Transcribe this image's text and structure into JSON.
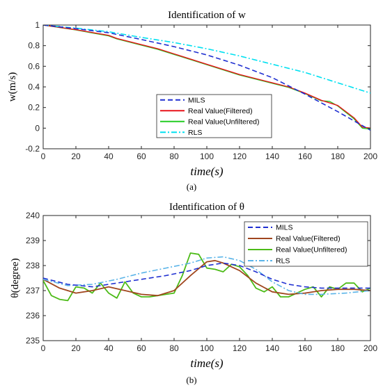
{
  "chart_data": [
    {
      "type": "line",
      "title": "Identification of w",
      "ylabel": "w(m/s)",
      "xlabel": "time(s)",
      "caption": "(a)",
      "xlim": [
        0,
        200
      ],
      "ylim": [
        -0.2,
        1
      ],
      "xticks": [
        "0",
        "20",
        "40",
        "60",
        "80",
        "100",
        "120",
        "140",
        "160",
        "180",
        "200"
      ],
      "yticks": [
        "-0.2",
        "0",
        "0.2",
        "0.4",
        "0.6",
        "0.8",
        "1"
      ],
      "legend_position": "bottom-right",
      "grid": false,
      "series": [
        {
          "name": "MILS",
          "color": "#1f2fd1",
          "style": "dashed",
          "x": [
            0,
            20,
            40,
            60,
            80,
            100,
            120,
            140,
            160,
            180,
            200
          ],
          "y": [
            1.0,
            0.965,
            0.925,
            0.86,
            0.79,
            0.71,
            0.61,
            0.49,
            0.33,
            0.16,
            -0.02
          ]
        },
        {
          "name": "Real Value(Filtered)",
          "color": "#e8141b",
          "style": "solid",
          "x": [
            0,
            20,
            40,
            45,
            60,
            70,
            80,
            100,
            120,
            140,
            150,
            160,
            170,
            180,
            190,
            195,
            200
          ],
          "y": [
            1.0,
            0.955,
            0.9,
            0.87,
            0.81,
            0.77,
            0.72,
            0.62,
            0.52,
            0.44,
            0.4,
            0.34,
            0.27,
            0.22,
            0.1,
            0.01,
            0.0
          ]
        },
        {
          "name": "Real Value(Unfiltered)",
          "color": "#22cc22",
          "style": "solid",
          "x": [
            0,
            20,
            40,
            45,
            60,
            70,
            80,
            100,
            120,
            140,
            150,
            160,
            170,
            175,
            180,
            190,
            195,
            200
          ],
          "y": [
            1.0,
            0.952,
            0.895,
            0.865,
            0.805,
            0.765,
            0.715,
            0.615,
            0.515,
            0.435,
            0.395,
            0.335,
            0.265,
            0.26,
            0.215,
            0.09,
            0.0,
            -0.01
          ]
        },
        {
          "name": "RLS",
          "color": "#00e0f0",
          "style": "dashdot",
          "x": [
            0,
            20,
            40,
            60,
            80,
            100,
            120,
            140,
            160,
            180,
            200
          ],
          "y": [
            1.0,
            0.97,
            0.935,
            0.88,
            0.83,
            0.77,
            0.7,
            0.62,
            0.54,
            0.44,
            0.34
          ]
        }
      ]
    },
    {
      "type": "line",
      "title": "Identification of θ",
      "ylabel": "θ(degree)",
      "xlabel": "time(s)",
      "caption": "(b)",
      "xlim": [
        0,
        200
      ],
      "ylim": [
        235,
        240
      ],
      "xticks": [
        "0",
        "20",
        "40",
        "60",
        "80",
        "100",
        "120",
        "140",
        "160",
        "180",
        "200"
      ],
      "yticks": [
        "235",
        "236",
        "237",
        "238",
        "239",
        "240"
      ],
      "legend_position": "top-right",
      "grid": false,
      "series": [
        {
          "name": "MILS",
          "color": "#1f2fd1",
          "style": "dashed",
          "x": [
            0,
            15,
            30,
            45,
            60,
            75,
            90,
            100,
            110,
            120,
            130,
            140,
            150,
            160,
            170,
            185,
            200
          ],
          "y": [
            237.5,
            237.25,
            237.15,
            237.3,
            237.45,
            237.6,
            237.8,
            238.0,
            238.1,
            238.0,
            237.75,
            237.45,
            237.25,
            237.15,
            237.1,
            237.1,
            237.1
          ]
        },
        {
          "name": "Real Value(Filtered)",
          "color": "#a0461e",
          "style": "solid",
          "x": [
            0,
            10,
            20,
            30,
            40,
            50,
            60,
            70,
            80,
            90,
            100,
            105,
            110,
            120,
            130,
            140,
            150,
            160,
            170,
            180,
            190,
            200
          ],
          "y": [
            237.45,
            237.1,
            236.9,
            237.0,
            237.15,
            237.0,
            236.85,
            236.8,
            237.0,
            237.6,
            238.15,
            238.2,
            238.1,
            237.8,
            237.3,
            236.95,
            236.85,
            236.9,
            237.0,
            237.05,
            237.05,
            237.0
          ]
        },
        {
          "name": "Real Value(Unfiltered)",
          "color": "#4cbb17",
          "style": "solid",
          "x": [
            0,
            5,
            10,
            15,
            20,
            25,
            30,
            35,
            40,
            45,
            50,
            55,
            60,
            65,
            70,
            75,
            80,
            85,
            90,
            95,
            100,
            105,
            110,
            115,
            120,
            125,
            130,
            135,
            140,
            145,
            150,
            155,
            160,
            165,
            170,
            175,
            180,
            185,
            190,
            195,
            200
          ],
          "y": [
            237.4,
            236.8,
            236.65,
            236.6,
            237.15,
            237.1,
            236.9,
            237.3,
            236.9,
            236.7,
            237.35,
            236.9,
            236.75,
            236.75,
            236.8,
            236.85,
            236.9,
            237.6,
            238.5,
            238.45,
            237.9,
            237.85,
            237.75,
            238.05,
            237.95,
            237.6,
            237.1,
            236.95,
            237.15,
            236.75,
            236.75,
            236.9,
            237.05,
            237.15,
            236.75,
            237.15,
            237.05,
            237.3,
            237.3,
            236.95,
            237.1
          ]
        },
        {
          "name": "RLS",
          "color": "#5ab4e8",
          "style": "dashdot",
          "x": [
            0,
            15,
            30,
            45,
            60,
            75,
            90,
            100,
            110,
            120,
            130,
            140,
            150,
            160,
            170,
            185,
            200
          ],
          "y": [
            237.45,
            237.2,
            237.25,
            237.45,
            237.7,
            237.9,
            238.1,
            238.3,
            238.35,
            238.2,
            237.85,
            237.35,
            237.0,
            236.85,
            236.85,
            236.9,
            237.0
          ]
        }
      ]
    }
  ]
}
